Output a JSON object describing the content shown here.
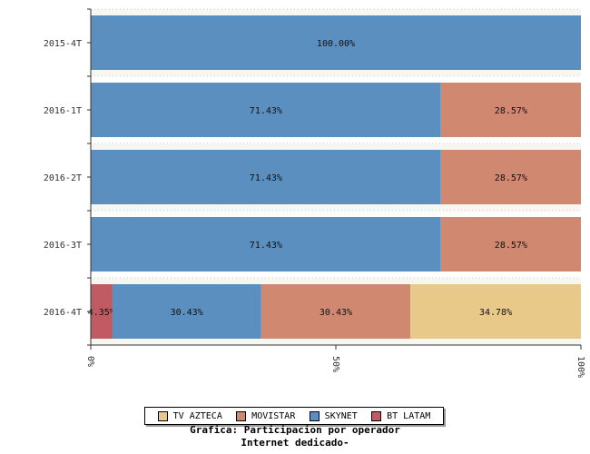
{
  "chart_data": {
    "type": "bar",
    "orientation": "horizontal",
    "stacked": true,
    "percent": true,
    "categories": [
      "2015-4T",
      "2016-1T",
      "2016-2T",
      "2016-3T",
      "2016-4T"
    ],
    "series": [
      {
        "name": "BT LATAM",
        "color": "#c15b63",
        "values": [
          0,
          0,
          0,
          0,
          4.35
        ],
        "labels": [
          "",
          "",
          "",
          "",
          "4.35%"
        ]
      },
      {
        "name": "SKYNET",
        "color": "#5b8fc0",
        "values": [
          100,
          71.43,
          71.43,
          71.43,
          30.43
        ],
        "labels": [
          "100.00%",
          "71.43%",
          "71.43%",
          "71.43%",
          "30.43%"
        ]
      },
      {
        "name": "MOVISTAR",
        "color": "#d08870",
        "values": [
          0,
          28.57,
          28.57,
          28.57,
          30.43
        ],
        "labels": [
          "",
          "28.57%",
          "28.57%",
          "28.57%",
          "30.43%"
        ]
      },
      {
        "name": "TV AZTECA",
        "color": "#e9c98a",
        "values": [
          0,
          0,
          0,
          0,
          34.78
        ],
        "labels": [
          "",
          "",
          "",
          "",
          "34.78%"
        ]
      }
    ],
    "xlim": [
      0,
      100
    ],
    "xticks": [
      "0%",
      "50%",
      "100%"
    ],
    "legend_order": [
      "TV AZTECA",
      "MOVISTAR",
      "SKYNET",
      "BT LATAM"
    ],
    "legend_position": "bottom",
    "title_lines": [
      "Grafica: Participacion por operador",
      "Internet dedicado-"
    ]
  }
}
